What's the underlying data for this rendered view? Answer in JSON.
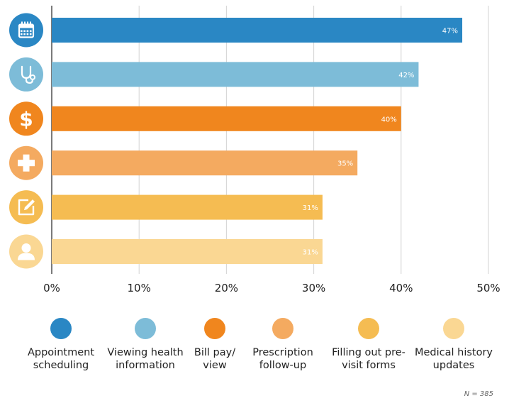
{
  "chart_data": {
    "type": "bar",
    "orientation": "horizontal",
    "categories": [
      "Appointment scheduling",
      "Viewing health information",
      "Bill pay/ view",
      "Prescription follow-up",
      "Filling out pre-visit forms",
      "Medical history updates"
    ],
    "values": [
      47,
      42,
      40,
      35,
      31,
      31
    ],
    "value_labels": [
      "47%",
      "42%",
      "40%",
      "35%",
      "31%",
      "31%"
    ],
    "xlim": [
      0,
      50
    ],
    "xticks": [
      0,
      10,
      20,
      30,
      40,
      50
    ],
    "xtick_labels": [
      "0%",
      "10%",
      "20%",
      "30%",
      "40%",
      "50%"
    ],
    "grid": "vertical",
    "legend_position": "bottom",
    "colors": [
      "#2a87c4",
      "#7dbcd8",
      "#f0861e",
      "#f4aa60",
      "#f5bc52",
      "#fad793"
    ],
    "icons": [
      "calendar-icon",
      "stethoscope-icon",
      "dollar-icon",
      "medical-cross-icon",
      "form-edit-icon",
      "person-icon"
    ]
  },
  "legend": [
    {
      "line1": "Appointment",
      "line2": "scheduling"
    },
    {
      "line1": "Viewing health",
      "line2": "information"
    },
    {
      "line1": "Bill pay/",
      "line2": "view"
    },
    {
      "line1": "Prescription",
      "line2": "follow-up"
    },
    {
      "line1": "Filling out pre-",
      "line2": "visit forms"
    },
    {
      "line1": "Medical history",
      "line2": "updates"
    }
  ],
  "note": "N = 385"
}
